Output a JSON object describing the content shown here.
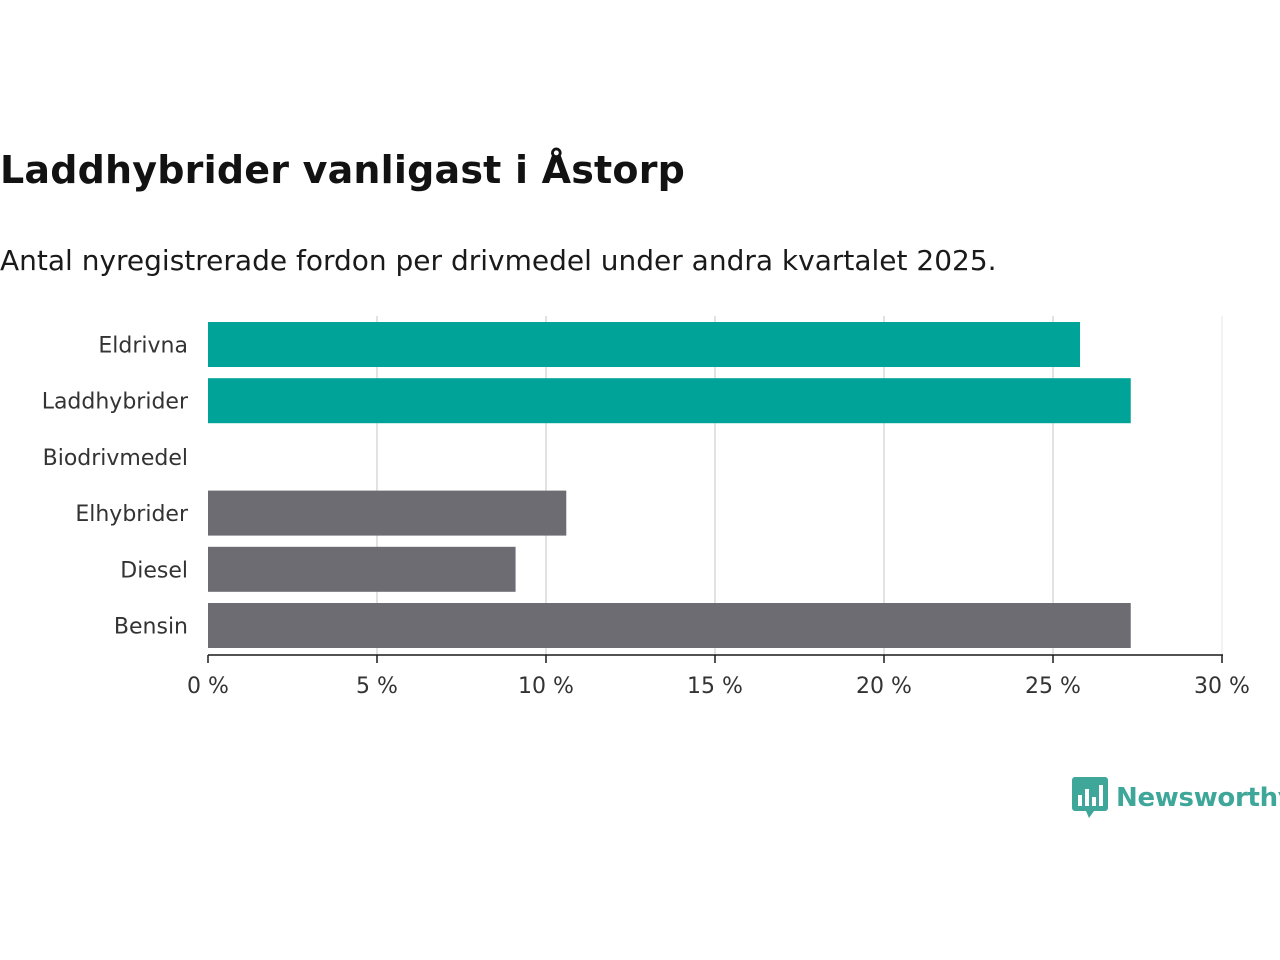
{
  "chart_data": {
    "type": "bar",
    "orientation": "horizontal",
    "title": "Laddhybrider vanligast i Åstorp",
    "subtitle": "Antal nyregistrerade fordon per drivmedel under andra kvartalet 2025.",
    "categories": [
      "Eldrivna",
      "Laddhybrider",
      "Biodrivmedel",
      "Elhybrider",
      "Diesel",
      "Bensin"
    ],
    "values": [
      25.8,
      27.3,
      0,
      10.6,
      9.1,
      27.3
    ],
    "bar_colors": [
      "#00a398",
      "#00a398",
      "#6e6c73",
      "#6e6c73",
      "#6e6c73",
      "#6e6c73"
    ],
    "xlim": [
      0,
      30
    ],
    "xticks": [
      0,
      5,
      10,
      15,
      20,
      25,
      30
    ],
    "xtick_labels": [
      "0 %",
      "5 %",
      "10 %",
      "15 %",
      "20 %",
      "25 %",
      "30 %"
    ],
    "grid": "vertical",
    "unit": "%"
  },
  "branding": {
    "logo_text": "Newsworthy",
    "logo_icon": "bar-chart-speech-bubble-icon",
    "color": "#3fa79a"
  }
}
